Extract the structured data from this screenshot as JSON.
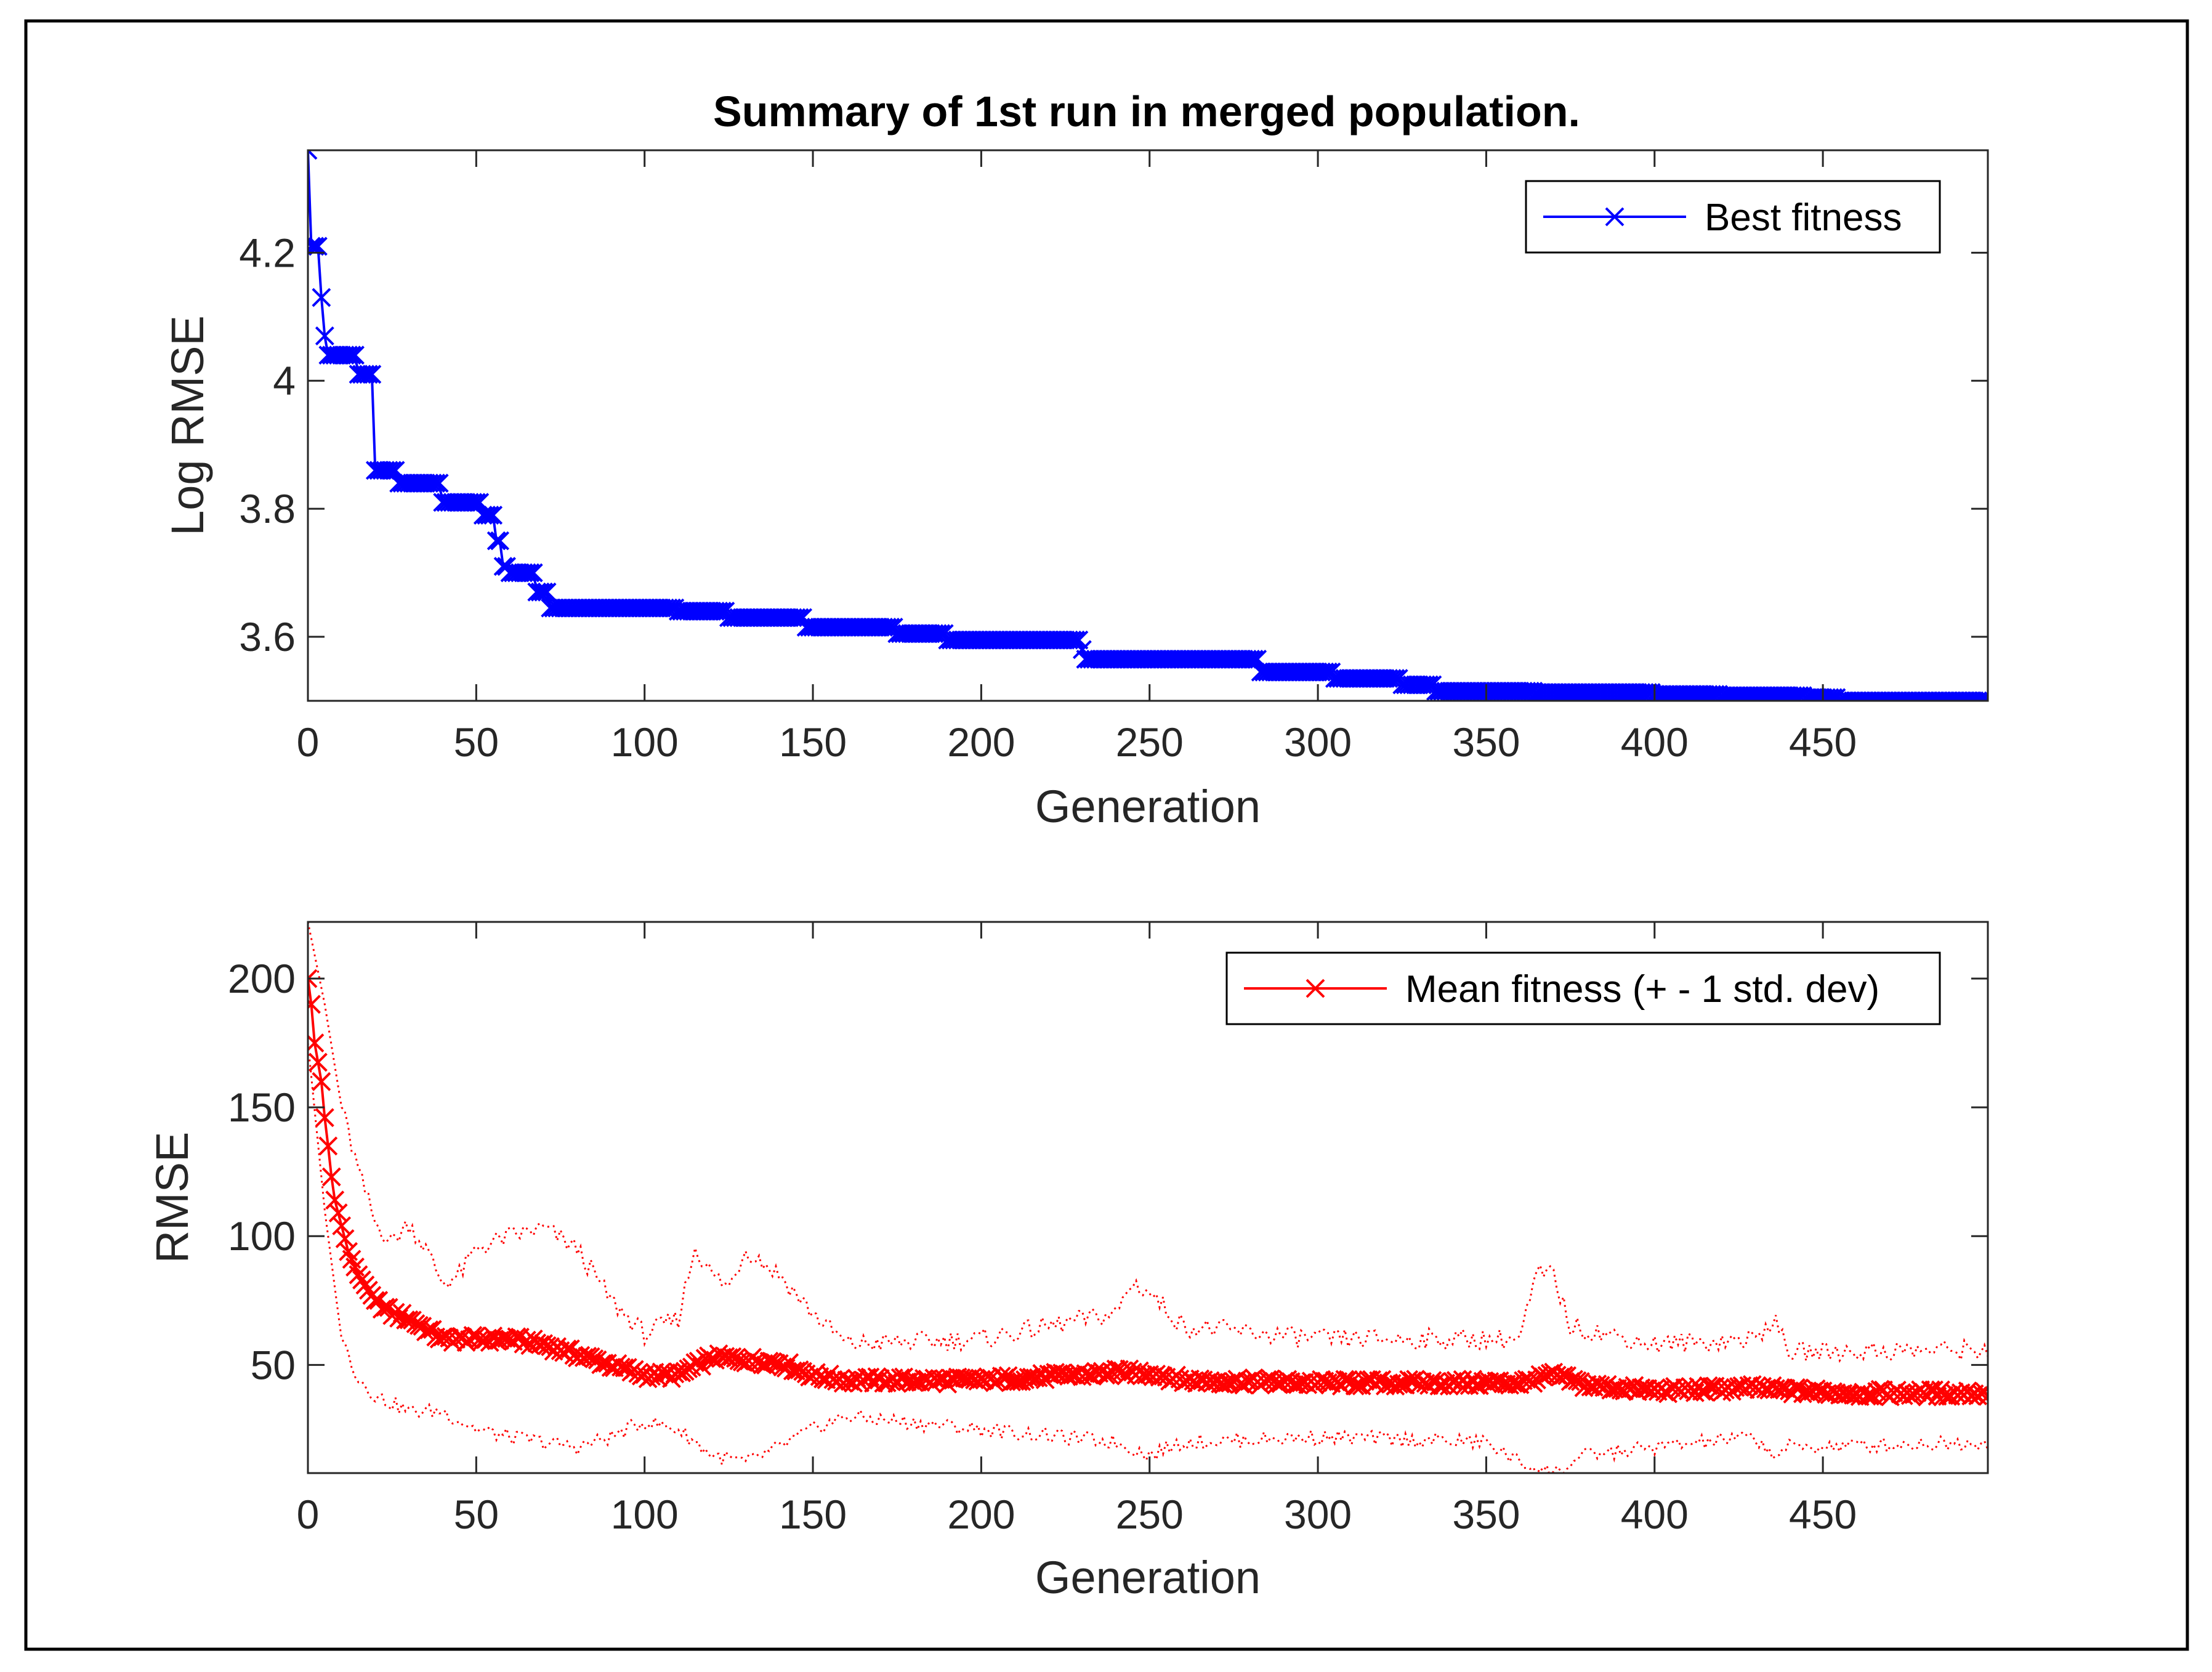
{
  "chart_data": [
    {
      "type": "line",
      "title": "Summary of 1st run in merged population.",
      "xlabel": "Generation",
      "ylabel": "Log RMSE",
      "xlim": [
        0,
        499
      ],
      "ylim": [
        3.5,
        4.36
      ],
      "xticks": [
        0,
        50,
        100,
        150,
        200,
        250,
        300,
        350,
        400,
        450
      ],
      "yticks": [
        3.6,
        3.8,
        4,
        4.2
      ],
      "xtick_labels": [
        "0",
        "50",
        "100",
        "150",
        "200",
        "250",
        "300",
        "350",
        "400",
        "450"
      ],
      "ytick_labels": [
        "3.6",
        "3.8",
        "4",
        "4.2"
      ],
      "legend_position": "top-right",
      "series": [
        {
          "name": "Best fitness",
          "color": "#0000ff",
          "marker": "x",
          "steps": [
            [
              0,
              4.36
            ],
            [
              1,
              4.21
            ],
            [
              4,
              4.13
            ],
            [
              5,
              4.07
            ],
            [
              6,
              4.04
            ],
            [
              15,
              4.01
            ],
            [
              20,
              3.86
            ],
            [
              27,
              3.84
            ],
            [
              40,
              3.81
            ],
            [
              52,
              3.79
            ],
            [
              56,
              3.75
            ],
            [
              58,
              3.71
            ],
            [
              60,
              3.7
            ],
            [
              68,
              3.67
            ],
            [
              72,
              3.645
            ],
            [
              110,
              3.64
            ],
            [
              125,
              3.63
            ],
            [
              148,
              3.615
            ],
            [
              175,
              3.605
            ],
            [
              190,
              3.595
            ],
            [
              230,
              3.58
            ],
            [
              231,
              3.565
            ],
            [
              283,
              3.545
            ],
            [
              305,
              3.535
            ],
            [
              325,
              3.525
            ],
            [
              335,
              3.515
            ],
            [
              365,
              3.513
            ],
            [
              400,
              3.51
            ],
            [
              420,
              3.508
            ],
            [
              445,
              3.505
            ],
            [
              455,
              3.5
            ],
            [
              499,
              3.5
            ]
          ]
        }
      ]
    },
    {
      "type": "line",
      "title": "",
      "xlabel": "Generation",
      "ylabel": "RMSE",
      "xlim": [
        0,
        499
      ],
      "ylim": [
        8,
        222
      ],
      "xticks": [
        0,
        50,
        100,
        150,
        200,
        250,
        300,
        350,
        400,
        450
      ],
      "yticks": [
        50,
        100,
        150,
        200
      ],
      "xtick_labels": [
        "0",
        "50",
        "100",
        "150",
        "200",
        "250",
        "300",
        "350",
        "400",
        "450"
      ],
      "ytick_labels": [
        "50",
        "100",
        "150",
        "200"
      ],
      "legend_position": "top-right",
      "series": [
        {
          "name": "Mean fitness (+ - 1 std. dev)",
          "color": "#ff0000",
          "marker": "x",
          "mean_anchors": [
            [
              0,
              200
            ],
            [
              1,
              190
            ],
            [
              2,
              175
            ],
            [
              4,
              160
            ],
            [
              5,
              146
            ],
            [
              6,
              135
            ],
            [
              7,
              123
            ],
            [
              8,
              114
            ],
            [
              10,
              104
            ],
            [
              12,
              94
            ],
            [
              15,
              85
            ],
            [
              20,
              75
            ],
            [
              25,
              70
            ],
            [
              30,
              68
            ],
            [
              40,
              60
            ],
            [
              50,
              60
            ],
            [
              60,
              60
            ],
            [
              70,
              58
            ],
            [
              80,
              54
            ],
            [
              90,
              50
            ],
            [
              100,
              46
            ],
            [
              110,
              46
            ],
            [
              120,
              53
            ],
            [
              130,
              52
            ],
            [
              140,
              51
            ],
            [
              150,
              46
            ],
            [
              160,
              44
            ],
            [
              200,
              44
            ],
            [
              240,
              47
            ],
            [
              250,
              47
            ],
            [
              260,
              44
            ],
            [
              300,
              43
            ],
            [
              360,
              43
            ],
            [
              370,
              46
            ],
            [
              380,
              42
            ],
            [
              400,
              40
            ],
            [
              430,
              41
            ],
            [
              440,
              40
            ],
            [
              460,
              39
            ],
            [
              499,
              39
            ]
          ],
          "upper_anchors": [
            [
              0,
              222
            ],
            [
              5,
              190
            ],
            [
              10,
              150
            ],
            [
              15,
              125
            ],
            [
              20,
              105
            ],
            [
              25,
              98
            ],
            [
              30,
              105
            ],
            [
              35,
              95
            ],
            [
              40,
              82
            ],
            [
              45,
              85
            ],
            [
              50,
              95
            ],
            [
              60,
              100
            ],
            [
              70,
              103
            ],
            [
              80,
              95
            ],
            [
              90,
              75
            ],
            [
              100,
              62
            ],
            [
              110,
              68
            ],
            [
              115,
              96
            ],
            [
              120,
              85
            ],
            [
              125,
              80
            ],
            [
              130,
              95
            ],
            [
              140,
              85
            ],
            [
              150,
              70
            ],
            [
              160,
              58
            ],
            [
              200,
              60
            ],
            [
              240,
              70
            ],
            [
              245,
              82
            ],
            [
              250,
              78
            ],
            [
              260,
              65
            ],
            [
              300,
              60
            ],
            [
              360,
              60
            ],
            [
              365,
              85
            ],
            [
              370,
              85
            ],
            [
              375,
              65
            ],
            [
              400,
              58
            ],
            [
              430,
              60
            ],
            [
              435,
              68
            ],
            [
              440,
              55
            ],
            [
              499,
              56
            ]
          ],
          "lower_anchors": [
            [
              0,
              175
            ],
            [
              5,
              110
            ],
            [
              10,
              60
            ],
            [
              15,
              45
            ],
            [
              20,
              38
            ],
            [
              30,
              32
            ],
            [
              40,
              32
            ],
            [
              50,
              25
            ],
            [
              60,
              22
            ],
            [
              70,
              20
            ],
            [
              80,
              18
            ],
            [
              90,
              22
            ],
            [
              100,
              28
            ],
            [
              110,
              25
            ],
            [
              120,
              15
            ],
            [
              130,
              12
            ],
            [
              140,
              18
            ],
            [
              150,
              25
            ],
            [
              160,
              30
            ],
            [
              200,
              25
            ],
            [
              240,
              20
            ],
            [
              250,
              15
            ],
            [
              260,
              20
            ],
            [
              300,
              22
            ],
            [
              350,
              20
            ],
            [
              360,
              12
            ],
            [
              370,
              8
            ],
            [
              380,
              15
            ],
            [
              400,
              18
            ],
            [
              430,
              22
            ],
            [
              435,
              15
            ],
            [
              440,
              18
            ],
            [
              499,
              20
            ]
          ]
        }
      ]
    }
  ]
}
